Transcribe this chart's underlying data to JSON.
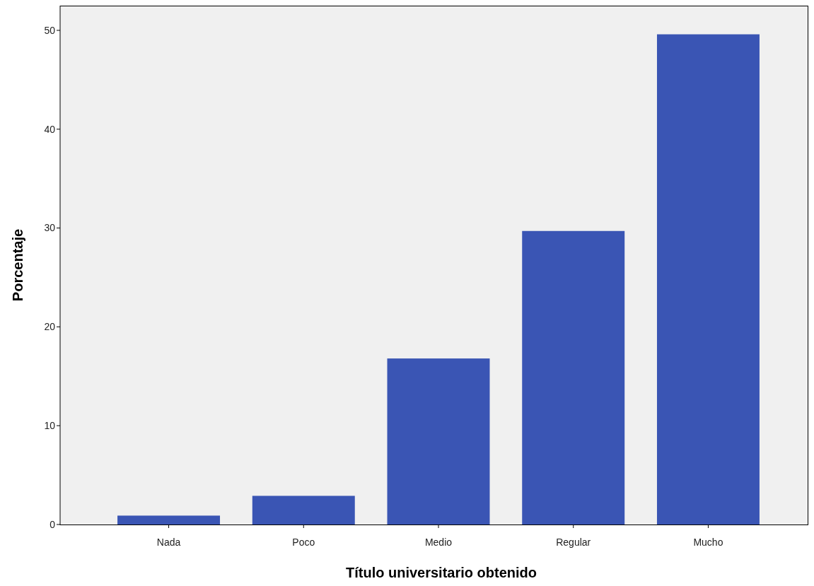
{
  "chart_data": {
    "type": "bar",
    "xlabel": "Título universitario obtenido",
    "ylabel": "Porcentaje",
    "categories": [
      "Nada",
      "Poco",
      "Medio",
      "Regular",
      "Mucho"
    ],
    "values": [
      0.9,
      2.9,
      16.8,
      29.7,
      49.6
    ],
    "color": "#3a55b4",
    "ylim": [
      0,
      52.5
    ],
    "yticks": [
      0,
      10,
      20,
      30,
      40,
      50
    ],
    "grid": false
  }
}
